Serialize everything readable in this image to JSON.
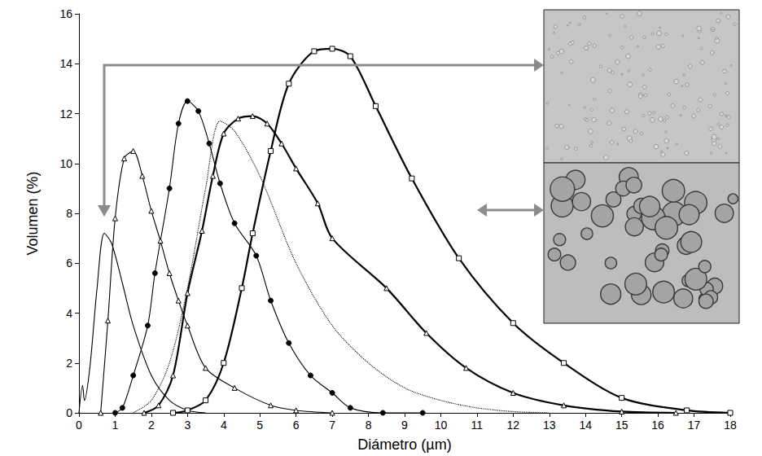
{
  "chart_data": {
    "type": "line",
    "x_label": "Diámetro (µm)",
    "y_label": "Volumen (%)",
    "xlim": [
      0,
      18
    ],
    "xticks": [
      0,
      1,
      2,
      3,
      4,
      5,
      6,
      7,
      8,
      9,
      10,
      11,
      12,
      13,
      14,
      15,
      16,
      17,
      18
    ],
    "ylim": [
      0,
      16
    ],
    "yticks": [
      0,
      2,
      4,
      6,
      8,
      10,
      12,
      14,
      16
    ],
    "grid": false,
    "series": [
      {
        "color": "#000000",
        "marker": "none",
        "line_style": "solid",
        "x": [
          0,
          0.1,
          0.15,
          0.3,
          0.5,
          0.7,
          0.9,
          1.2,
          1.5,
          2.0,
          2.5,
          3.0,
          3.5
        ],
        "values": [
          0,
          1.1,
          0.5,
          1.8,
          5.0,
          7.2,
          6.8,
          5.2,
          3.5,
          1.5,
          0.5,
          0.1,
          0
        ]
      },
      {
        "color": "#000000",
        "marker": "open-triangle",
        "line_style": "solid",
        "x": [
          0.6,
          0.8,
          1.0,
          1.25,
          1.5,
          1.75,
          2.0,
          2.25,
          2.5,
          2.75,
          3.0,
          3.5,
          4.3,
          5.3,
          6.0,
          7.0
        ],
        "values": [
          0,
          3.7,
          7.8,
          10.2,
          10.5,
          9.5,
          8.1,
          6.9,
          5.6,
          4.5,
          3.5,
          1.8,
          1.0,
          0.3,
          0.1,
          0
        ]
      },
      {
        "color": "#000000",
        "marker": "filled-circle",
        "line_style": "solid",
        "x": [
          1.0,
          1.2,
          1.5,
          1.9,
          2.1,
          2.5,
          2.75,
          3.0,
          3.3,
          3.6,
          3.9,
          4.3,
          4.9,
          5.3,
          5.8,
          6.4,
          7.0,
          7.5,
          8.4,
          9.5
        ],
        "values": [
          0,
          0.2,
          1.5,
          3.5,
          5.6,
          9.0,
          11.6,
          12.5,
          12.1,
          10.8,
          9.2,
          7.6,
          6.3,
          4.5,
          2.8,
          1.5,
          0.8,
          0.2,
          0,
          0
        ]
      },
      {
        "color": "#000000",
        "marker": "none",
        "line_style": "dotted",
        "x": [
          1.5,
          2.0,
          2.5,
          3.0,
          3.5,
          3.9,
          4.3,
          5.0,
          6.0,
          7.0,
          8.0,
          9.0,
          10.0,
          11.0,
          12.0,
          13.0
        ],
        "values": [
          0,
          0.5,
          2.0,
          5.0,
          9.0,
          11.7,
          11.3,
          9.5,
          6.0,
          3.5,
          2.0,
          1.0,
          0.5,
          0.2,
          0.05,
          0
        ]
      },
      {
        "color": "#000000",
        "marker": "open-triangle",
        "line_style": "bold",
        "x": [
          1.8,
          2.2,
          2.6,
          3.0,
          3.4,
          3.7,
          4.0,
          4.4,
          4.8,
          5.2,
          5.6,
          6.0,
          6.6,
          7.0,
          8.5,
          9.6,
          10.7,
          12.0,
          13.4,
          15.0,
          16.5
        ],
        "values": [
          0,
          0.3,
          1.5,
          4.8,
          7.3,
          9.5,
          11.2,
          11.8,
          11.9,
          11.6,
          10.8,
          9.8,
          8.4,
          7.0,
          5.0,
          3.2,
          1.8,
          0.8,
          0.3,
          0.05,
          0
        ]
      },
      {
        "color": "#000000",
        "marker": "open-square",
        "line_style": "bold",
        "x": [
          2.6,
          3.0,
          3.5,
          4.0,
          4.5,
          4.8,
          5.3,
          5.8,
          6.5,
          7.0,
          7.5,
          8.2,
          9.2,
          10.5,
          12.0,
          13.4,
          15.0,
          16.8,
          18.0
        ],
        "values": [
          0,
          0.1,
          0.5,
          2.0,
          5.0,
          7.2,
          10.5,
          13.2,
          14.5,
          14.6,
          14.3,
          12.3,
          9.4,
          6.2,
          3.6,
          2.0,
          0.6,
          0.1,
          0
        ]
      }
    ]
  }
}
